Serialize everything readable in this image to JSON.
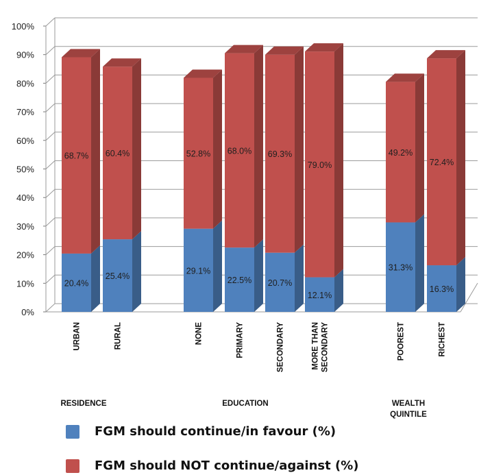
{
  "chart_data": {
    "type": "bar",
    "stacked": true,
    "percent_stacked": true,
    "three_d": true,
    "ylim": [
      0,
      100
    ],
    "y_ticks": [
      "0%",
      "10%",
      "20%",
      "30%",
      "40%",
      "50%",
      "60%",
      "70%",
      "80%",
      "90%",
      "100%"
    ],
    "grid": true,
    "categories": [
      "URBAN",
      "RURAL",
      "NONE",
      "PRIMARY",
      "SECONDARY",
      "MORE THAN SECONDARY",
      "POOREST",
      "RICHEST"
    ],
    "category_label_lines": [
      [
        "URBAN"
      ],
      [
        "RURAL"
      ],
      [
        "NONE"
      ],
      [
        "PRIMARY"
      ],
      [
        "SECONDARY"
      ],
      [
        "MORE THAN",
        "SECONDARY"
      ],
      [
        "POOREST"
      ],
      [
        "RICHEST"
      ]
    ],
    "groups": [
      {
        "label_lines": [
          "RESIDENCE"
        ],
        "categories": [
          "URBAN",
          "RURAL"
        ]
      },
      {
        "label_lines": [
          "EDUCATION"
        ],
        "categories": [
          "NONE",
          "PRIMARY",
          "SECONDARY",
          "MORE THAN SECONDARY"
        ]
      },
      {
        "label_lines": [
          "WEALTH",
          "QUINTILE"
        ],
        "categories": [
          "POOREST",
          "RICHEST"
        ]
      }
    ],
    "series": [
      {
        "name": "FGM should continue/in favour (%)",
        "color": "#4f81bd",
        "values": [
          20.4,
          25.4,
          29.1,
          22.5,
          20.7,
          12.1,
          31.3,
          16.3
        ],
        "data_labels": [
          "20.4%",
          "25.4%",
          "29.1%",
          "22.5%",
          "20.7%",
          "12.1%",
          "31.3%",
          "16.3%"
        ]
      },
      {
        "name": "FGM should NOT continue/against (%)",
        "color": "#c0504d",
        "values": [
          68.7,
          60.4,
          52.8,
          68.0,
          69.3,
          79.0,
          49.2,
          72.4
        ],
        "data_labels": [
          "68.7%",
          "60.4%",
          "52.8%",
          "68.0%",
          "69.3%",
          "79.0%",
          "49.2%",
          "72.4%"
        ]
      }
    ],
    "legend_position": "bottom-left"
  }
}
